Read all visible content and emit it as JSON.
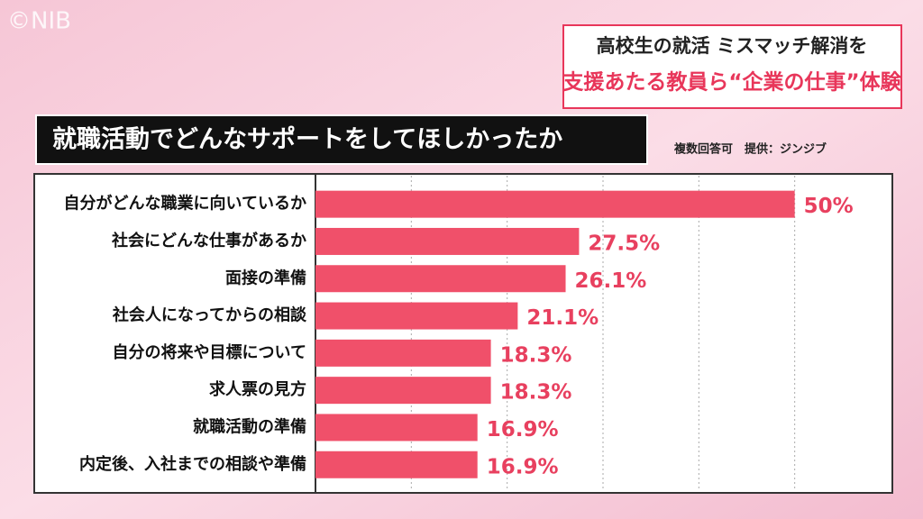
{
  "watermark": "©NIB",
  "headline": [
    "高校生の就活 ミスマッチ解消を",
    "支援あたる教員ら“企業の仕事”体験"
  ],
  "chart_data": {
    "type": "bar",
    "orientation": "horizontal",
    "title": "就職活動でどんなサポートをしてほしかったか",
    "note": "複数回答可　提供：ジンジブ",
    "categories": [
      "自分がどんな職業に向いているか",
      "社会にどんな仕事があるか",
      "面接の準備",
      "社会人になってからの相談",
      "自分の将来や目標について",
      "求人票の見方",
      "就職活動の準備",
      "内定後、入社までの相談や準備"
    ],
    "values": [
      50,
      27.5,
      26.1,
      21.1,
      18.3,
      18.3,
      16.9,
      16.9
    ],
    "value_labels": [
      "50%",
      "27.5%",
      "26.1%",
      "21.1%",
      "18.3%",
      "18.3%",
      "16.9%",
      "16.9%"
    ],
    "color": "#f0506a",
    "label_color": "#e8405f",
    "xlim": [
      0,
      60
    ],
    "xticks": [
      10,
      20,
      30,
      40,
      50
    ],
    "grid": true
  }
}
